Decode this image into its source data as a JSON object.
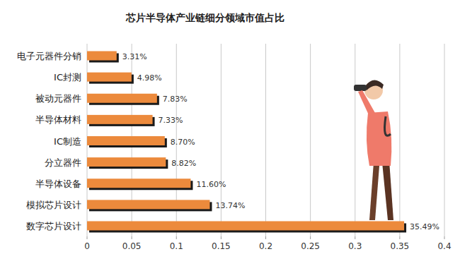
{
  "chart_data": {
    "type": "bar",
    "title": "芯片半导体产业链细分领域市值占比",
    "orientation": "horizontal",
    "categories": [
      "电子元器件分销",
      "IC封测",
      "被动元器件",
      "半导体材料",
      "IC制造",
      "分立器件",
      "半导体设备",
      "模拟芯片设计",
      "数字芯片设计"
    ],
    "values": [
      0.0331,
      0.0498,
      0.0783,
      0.0733,
      0.087,
      0.0882,
      0.116,
      0.1374,
      0.3549
    ],
    "value_labels": [
      "3.31%",
      "4.98%",
      "7.83%",
      "7.33%",
      "8.70%",
      "8.82%",
      "11.60%",
      "13.74%",
      "35.49%"
    ],
    "data_labels": true,
    "color": "#ec8a3c",
    "xlim": [
      0,
      0.4
    ],
    "xticks": [
      0,
      0.05,
      0.1,
      0.15,
      0.2,
      0.25,
      0.3,
      0.35,
      0.4
    ],
    "grid": true
  }
}
